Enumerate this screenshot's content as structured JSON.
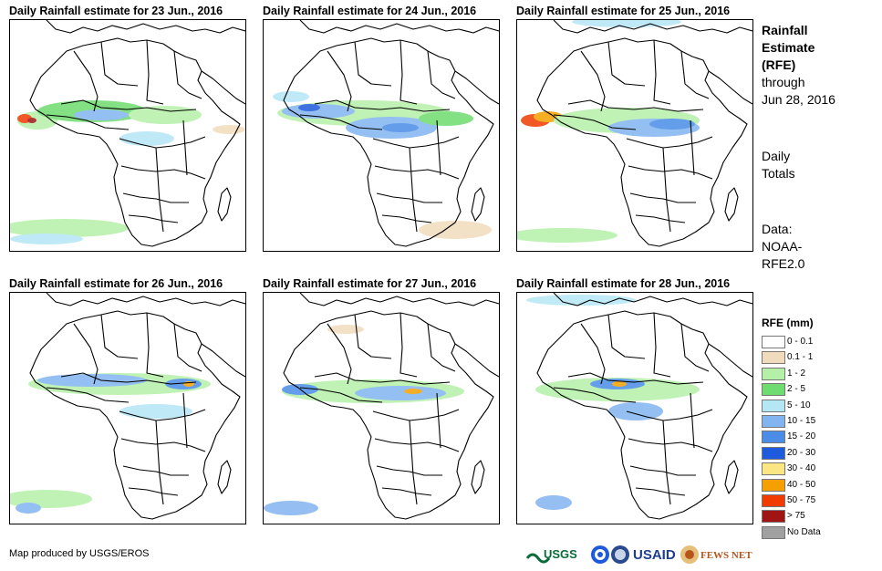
{
  "panels": [
    {
      "title": "Daily Rainfall estimate for 23 Jun., 2016"
    },
    {
      "title": "Daily Rainfall estimate for 24 Jun., 2016"
    },
    {
      "title": "Daily Rainfall estimate for 25 Jun., 2016"
    },
    {
      "title": "Daily Rainfall estimate for 26 Jun., 2016"
    },
    {
      "title": "Daily Rainfall estimate for 27 Jun., 2016"
    },
    {
      "title": "Daily Rainfall estimate for 28 Jun., 2016"
    }
  ],
  "side": {
    "heading_1": "Rainfall",
    "heading_2": "Estimate",
    "heading_3": "(RFE)",
    "through": "through",
    "date": "Jun 28, 2016",
    "daily": "Daily",
    "totals": "Totals",
    "data": "Data:",
    "noaa": "NOAA-",
    "rfe": "RFE2.0"
  },
  "legend": {
    "title": "RFE (mm)",
    "items": [
      {
        "label": "0 - 0.1",
        "color": "#ffffff"
      },
      {
        "label": "0.1 - 1",
        "color": "#f0dcbc"
      },
      {
        "label": "1 - 2",
        "color": "#b4f0a8"
      },
      {
        "label": "2 - 5",
        "color": "#6edc6e"
      },
      {
        "label": "5 - 10",
        "color": "#b4e6f5"
      },
      {
        "label": "10 - 15",
        "color": "#82b4f0"
      },
      {
        "label": "15 - 20",
        "color": "#4a8ce6"
      },
      {
        "label": "20 - 30",
        "color": "#1e5adc"
      },
      {
        "label": "30 - 40",
        "color": "#fae682"
      },
      {
        "label": "40 - 50",
        "color": "#f5a000"
      },
      {
        "label": "50 - 75",
        "color": "#f03c00"
      },
      {
        "label": "> 75",
        "color": "#a01414"
      },
      {
        "label": "No Data",
        "color": "#a0a0a0"
      }
    ]
  },
  "credit": "Map produced by USGS/EROS",
  "logos": {
    "usgs": "USGS",
    "usaid": "USAID",
    "fews": "FEWS NET"
  }
}
